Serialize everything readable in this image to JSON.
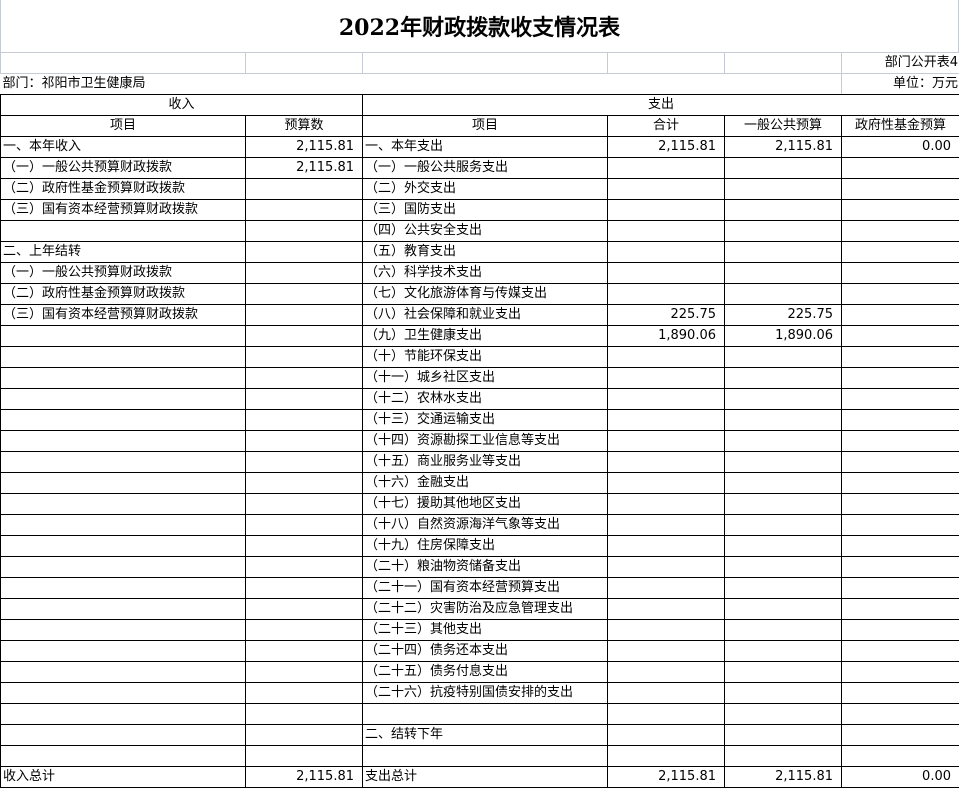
{
  "title": "2022年财政拨款收支情况表",
  "form_no": "部门公开表4",
  "department": "部门：祁阳市卫生健康局",
  "unit": "单位：万元",
  "headers": {
    "income": "收入",
    "expense": "支出",
    "income_item": "项目",
    "income_amount": "预算数",
    "expense_item": "项目",
    "expense_total": "合计",
    "expense_general": "一般公共预算",
    "expense_fund": "政府性基金预算"
  },
  "rows": [
    {
      "in_item": "一、本年收入",
      "in_amt": "2,115.81",
      "ex_item": "一、本年支出",
      "ex_total": "2,115.81",
      "ex_general": "2,115.81",
      "ex_fund": "0.00"
    },
    {
      "in_item": "（一）一般公共预算财政拨款",
      "in_amt": "2,115.81",
      "ex_item": "（一）一般公共服务支出"
    },
    {
      "in_item": "（二）政府性基金预算财政拨款",
      "ex_item": "（二）外交支出"
    },
    {
      "in_item": "（三）国有资本经营预算财政拨款",
      "ex_item": "（三）国防支出"
    },
    {
      "ex_item": "（四）公共安全支出"
    },
    {
      "in_item": "二、上年结转",
      "ex_item": "（五）教育支出"
    },
    {
      "in_item": "（一）一般公共预算财政拨款",
      "ex_item": "（六）科学技术支出"
    },
    {
      "in_item": "（二）政府性基金预算财政拨款",
      "ex_item": "（七）文化旅游体育与传媒支出"
    },
    {
      "in_item": "（三）国有资本经营预算财政拨款",
      "ex_item": "（八）社会保障和就业支出",
      "ex_total": "225.75",
      "ex_general": "225.75"
    },
    {
      "ex_item": "（九）卫生健康支出",
      "ex_total": "1,890.06",
      "ex_general": "1,890.06"
    },
    {
      "ex_item": "（十）节能环保支出"
    },
    {
      "ex_item": "（十一）城乡社区支出"
    },
    {
      "ex_item": "（十二）农林水支出"
    },
    {
      "ex_item": "（十三）交通运输支出"
    },
    {
      "ex_item": "（十四）资源勘探工业信息等支出"
    },
    {
      "ex_item": "（十五）商业服务业等支出"
    },
    {
      "ex_item": "（十六）金融支出"
    },
    {
      "ex_item": "（十七）援助其他地区支出"
    },
    {
      "ex_item": "（十八）自然资源海洋气象等支出"
    },
    {
      "ex_item": "（十九）住房保障支出"
    },
    {
      "ex_item": "（二十）粮油物资储备支出"
    },
    {
      "ex_item": "（二十一）国有资本经营预算支出"
    },
    {
      "ex_item": "（二十二）灾害防治及应急管理支出"
    },
    {
      "ex_item": "（二十三）其他支出"
    },
    {
      "ex_item": "（二十四）债务还本支出"
    },
    {
      "ex_item": "（二十五）债务付息支出"
    },
    {
      "ex_item": "（二十六）抗疫特别国债安排的支出"
    },
    {},
    {
      "ex_item": "二、结转下年"
    },
    {},
    {
      "in_item": "收入总计",
      "in_amt": "2,115.81",
      "ex_item": "支出总计",
      "ex_total": "2,115.81",
      "ex_general": "2,115.81",
      "ex_fund": "0.00"
    }
  ]
}
